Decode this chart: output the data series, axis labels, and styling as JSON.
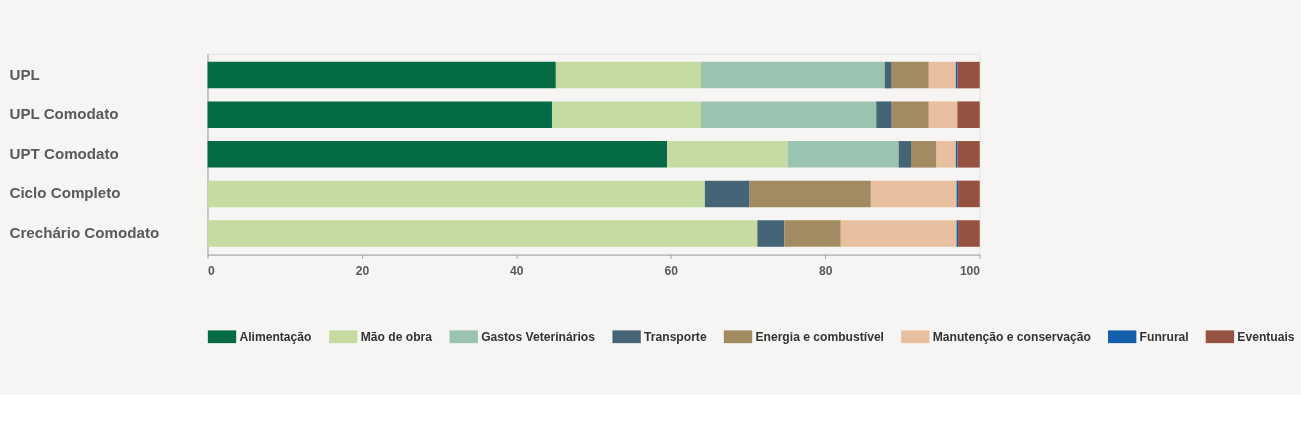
{
  "chart_data": {
    "type": "bar",
    "orientation": "horizontal",
    "stacked": true,
    "categories": [
      "UPL",
      "UPL Comodato",
      "UPT Comodato",
      "Ciclo Completo",
      "Crechário Comodato"
    ],
    "series": [
      {
        "name": "Alimentação",
        "color": "#056b45",
        "values": [
          45.1,
          44.6,
          59.5,
          null,
          null
        ]
      },
      {
        "name": "Mão de obra",
        "color": "#c6dba2",
        "values": [
          18.8,
          19.3,
          15.6,
          64.4,
          71.2
        ]
      },
      {
        "name": "Gastos Veterinários",
        "color": "#9bc4b0",
        "values": [
          23.8,
          22.7,
          14.4,
          null,
          null
        ]
      },
      {
        "name": "Transporte",
        "color": "#456476",
        "values": [
          0.9,
          2.0,
          1.6,
          5.8,
          3.5
        ]
      },
      {
        "name": "Energia e combustível",
        "color": "#a28b60",
        "values": [
          4.8,
          4.8,
          3.3,
          15.7,
          7.3
        ]
      },
      {
        "name": "Manutenção e conservação",
        "color": "#e8bf9f",
        "values": [
          3.5,
          3.7,
          2.5,
          11.1,
          15.0
        ]
      },
      {
        "name": "Funrural",
        "color": "#135eab",
        "values": [
          0.2,
          null,
          0.2,
          0.2,
          0.2
        ]
      },
      {
        "name": "Eventuais",
        "color": "#955240",
        "values": [
          2.9,
          2.9,
          2.9,
          2.8,
          2.8
        ]
      }
    ],
    "xlim": [
      0,
      100
    ],
    "xticks": [
      0,
      20,
      40,
      60,
      80,
      100
    ],
    "grid": false,
    "legend": "bottom"
  }
}
